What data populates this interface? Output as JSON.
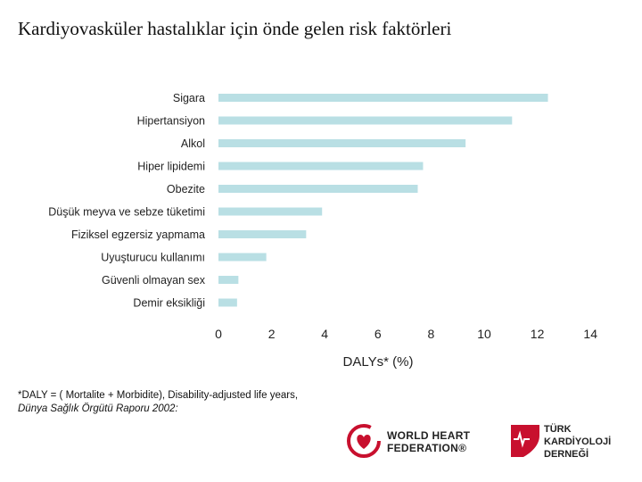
{
  "title": "Kardiyovasküler hastalıklar için önde gelen risk faktörleri",
  "chart_data": {
    "type": "bar",
    "orientation": "horizontal",
    "categories": [
      "Sigara",
      "Hipertansiyon",
      "Alkol",
      "Hiper lipidemi",
      "Obezite",
      "Düşük meyva ve sebze tüketimi",
      "Fiziksel egzersiz yapmama",
      "Uyuşturucu kullanımı",
      "Güvenli olmayan sex",
      "Demir eksikliği"
    ],
    "values": [
      12.4,
      11.05,
      9.3,
      7.7,
      7.5,
      3.9,
      3.3,
      1.8,
      0.75,
      0.7
    ],
    "xlabel": "DALYs* (%)",
    "ylabel": "",
    "xlim": [
      0,
      14
    ],
    "xticks": [
      "0",
      "2",
      "4",
      "6",
      "8",
      "10",
      "12",
      "14"
    ],
    "bar_color": "#b9dfe4",
    "grid": false
  },
  "footnote": {
    "line1": "*DALY = ( Mortalite + Morbidite), Disability-adjusted life years,",
    "line2": "Dünya Sağlık Örgütü Raporu 2002:"
  },
  "logos": {
    "whf": {
      "line1": "WORLD HEART",
      "line2": "FEDERATION®",
      "color": "#c8102e"
    },
    "tkd": {
      "line1": "TÜRK",
      "line2": "KARDİYOLOJİ",
      "line3": "DERNEĞİ",
      "color": "#c8102e"
    }
  }
}
